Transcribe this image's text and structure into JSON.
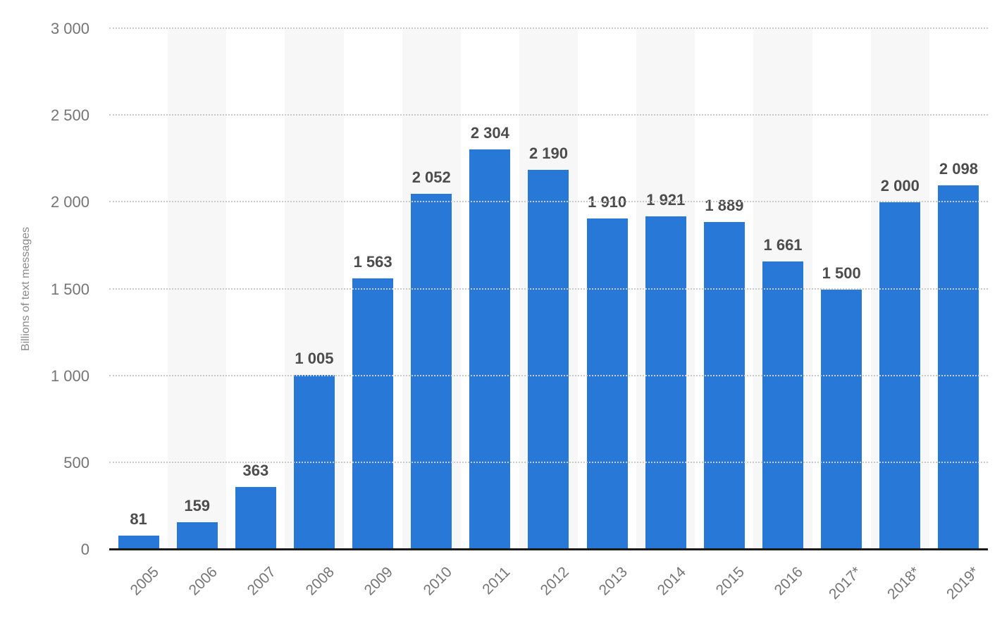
{
  "chart_data": {
    "type": "bar",
    "title": "",
    "xlabel": "",
    "ylabel": "Billions of text messages",
    "categories": [
      "2005",
      "2006",
      "2007",
      "2008",
      "2009",
      "2010",
      "2011",
      "2012",
      "2013",
      "2014",
      "2015",
      "2016",
      "2017*",
      "2018*",
      "2019*"
    ],
    "values": [
      81,
      159,
      363,
      1005,
      1563,
      2052,
      2304,
      2190,
      1910,
      1921,
      1889,
      1661,
      1500,
      2000,
      2098
    ],
    "value_labels": [
      "81",
      "159",
      "363",
      "1 005",
      "1 563",
      "2 052",
      "2 304",
      "2 190",
      "1 910",
      "1 921",
      "1 889",
      "1 661",
      "1 500",
      "2 000",
      "2 098"
    ],
    "ylim": [
      0,
      3000
    ],
    "ytick_values": [
      0,
      500,
      1000,
      1500,
      2000,
      2500,
      3000
    ],
    "ytick_labels": [
      "0",
      "500",
      "1 000",
      "1 500",
      "2 000",
      "2 500",
      "3 000"
    ],
    "grid": "horizontal-dotted",
    "legend": "none",
    "x_tick_rotation_deg": -45,
    "colors": {
      "bar": "#2878d8",
      "band": "#f7f7f7",
      "gridline": "#c9c9c9",
      "baseline": "#1b1b1b",
      "value_label": "#4c4c4c",
      "tick_label": "#757575",
      "axis_title": "#8a8a8a",
      "background": "#ffffff"
    }
  }
}
